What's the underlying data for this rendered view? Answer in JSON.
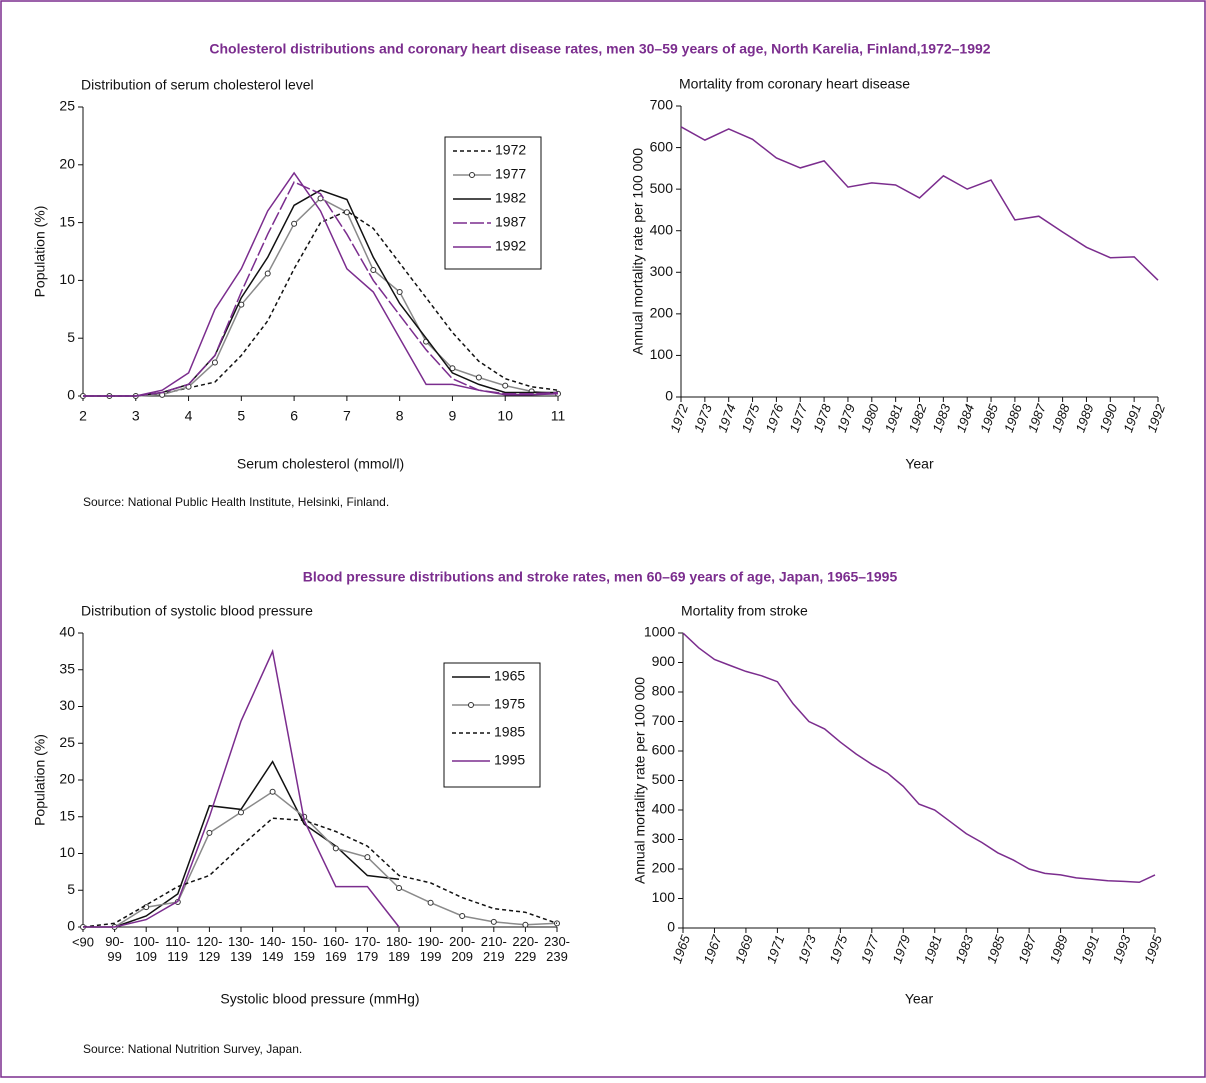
{
  "sections": [
    {
      "title": "Cholesterol distributions and coronary heart disease rates, men 30–59 years of age, North Karelia, Finland,1972–1992",
      "source": "Source: National Public Health Institute, Helsinki, Finland."
    },
    {
      "title": "Blood pressure distributions and stroke rates, men 60–69 years of age, Japan, 1965–1995",
      "source": "Source: National Nutrition Survey, Japan."
    }
  ],
  "chart_data": [
    {
      "type": "line",
      "title": "Distribution of serum cholesterol level",
      "x_label": "Serum cholesterol (mmol/l)",
      "y_label": "Population (%)",
      "x": [
        2,
        2.5,
        3,
        3.5,
        4,
        4.5,
        5,
        5.5,
        6,
        6.5,
        7,
        7.5,
        8,
        8.5,
        9,
        9.5,
        10,
        10.5,
        11
      ],
      "xlim": [
        2,
        11
      ],
      "xticks": [
        2,
        3,
        4,
        5,
        6,
        7,
        8,
        9,
        10,
        11
      ],
      "ylim": [
        0,
        25
      ],
      "yticks": [
        0,
        5,
        10,
        15,
        20,
        25
      ],
      "legend": "upper right",
      "series": [
        {
          "name": "1972",
          "color": "#111111",
          "dash": "4 3",
          "values": [
            0,
            0,
            0,
            0.2,
            0.7,
            1.2,
            3.5,
            6.5,
            11,
            15,
            16,
            14.5,
            11.5,
            8.5,
            5.5,
            3,
            1.5,
            0.8,
            0.5
          ]
        },
        {
          "name": "1977",
          "color": "#8a8a8a",
          "marker": "circle",
          "values": [
            0,
            0,
            0,
            0.1,
            0.8,
            2.9,
            7.9,
            10.6,
            14.9,
            17.1,
            15.9,
            10.9,
            9,
            4.7,
            2.4,
            1.6,
            0.9,
            0.4,
            0.2
          ]
        },
        {
          "name": "1982",
          "color": "#111111",
          "values": [
            0,
            0,
            0,
            0.3,
            1,
            3.5,
            8.5,
            12,
            16.5,
            17.8,
            17,
            12,
            8,
            5,
            2,
            1,
            0.3,
            0.3,
            0.3
          ]
        },
        {
          "name": "1987",
          "color": "#7b2d8e",
          "dash": "14 3",
          "values": [
            0,
            0,
            0,
            0.3,
            1,
            3.5,
            9,
            14,
            18.5,
            17.5,
            14,
            10,
            7,
            4,
            1.5,
            0.5,
            0.2,
            0.2,
            0.3
          ]
        },
        {
          "name": "1992",
          "color": "#7b2d8e",
          "values": [
            0,
            0,
            0,
            0.5,
            2,
            7.5,
            11,
            16,
            19.3,
            16,
            11,
            9,
            5,
            1,
            1,
            0.5,
            0.1,
            0.1,
            0.2
          ]
        }
      ]
    },
    {
      "type": "line",
      "title": "Mortality from coronary heart disease",
      "x_label": "Year",
      "y_label": "Annual mortality rate per 100 000",
      "x": [
        1972,
        1973,
        1974,
        1975,
        1976,
        1977,
        1978,
        1979,
        1980,
        1981,
        1982,
        1983,
        1984,
        1985,
        1986,
        1987,
        1988,
        1989,
        1990,
        1991,
        1992
      ],
      "xlim": [
        1972,
        1992
      ],
      "xticks": [
        1972,
        1973,
        1974,
        1975,
        1976,
        1977,
        1978,
        1979,
        1980,
        1981,
        1982,
        1983,
        1984,
        1985,
        1986,
        1987,
        1988,
        1989,
        1990,
        1991,
        1992
      ],
      "xtick_rotation": -70,
      "ylim": [
        0,
        700
      ],
      "yticks": [
        0,
        100,
        200,
        300,
        400,
        500,
        600,
        700
      ],
      "color": "#7b2d8e",
      "values": [
        650,
        618,
        645,
        620,
        575,
        551,
        568,
        505,
        515,
        510,
        479,
        532,
        500,
        522,
        426,
        435,
        397,
        360,
        335,
        337,
        281
      ]
    },
    {
      "type": "line",
      "title": "Distribution of systolic blood pressure",
      "x_label": "Systolic blood pressure (mmHg)",
      "y_label": "Population (%)",
      "categories": [
        "<90",
        "90-99",
        "100-109",
        "110-119",
        "120-129",
        "130-139",
        "140-149",
        "150-159",
        "160-169",
        "170-179",
        "180-189",
        "190-199",
        "200-209",
        "210-219",
        "220-229",
        "230-239"
      ],
      "ylim": [
        0,
        40
      ],
      "yticks": [
        0,
        5,
        10,
        15,
        20,
        25,
        30,
        35,
        40
      ],
      "legend": "upper right",
      "series": [
        {
          "name": "1965",
          "color": "#111111",
          "values": [
            0,
            0,
            1.5,
            4.5,
            16.5,
            16,
            22.5,
            14,
            11,
            7,
            6.5,
            null,
            null,
            null,
            null,
            null
          ]
        },
        {
          "name": "1975",
          "color": "#8a8a8a",
          "marker": "circle",
          "values": [
            0,
            0,
            2.7,
            3.4,
            12.8,
            15.6,
            18.4,
            15,
            10.7,
            9.5,
            5.3,
            3.3,
            1.5,
            0.7,
            0.3,
            0.5
          ]
        },
        {
          "name": "1985",
          "color": "#111111",
          "dash": "4 3",
          "values": [
            0,
            0.5,
            3,
            5.5,
            7,
            11,
            14.8,
            14.5,
            13,
            11,
            7,
            6,
            4,
            2.5,
            2,
            0.5
          ]
        },
        {
          "name": "1995",
          "color": "#7b2d8e",
          "values": [
            0,
            0,
            1,
            3.5,
            15,
            28,
            37.5,
            14.5,
            5.5,
            5.5,
            0,
            null,
            null,
            null,
            null,
            null
          ]
        }
      ]
    },
    {
      "type": "line",
      "title": "Mortality from stroke",
      "x_label": "Year",
      "y_label": "Annual mortality rate per 100 000",
      "x": [
        1965,
        1966,
        1967,
        1968,
        1969,
        1970,
        1971,
        1972,
        1973,
        1974,
        1975,
        1976,
        1977,
        1978,
        1979,
        1980,
        1981,
        1982,
        1983,
        1984,
        1985,
        1986,
        1987,
        1988,
        1989,
        1990,
        1991,
        1992,
        1993,
        1994,
        1995
      ],
      "xlim": [
        1965,
        1995
      ],
      "xticks": [
        1965,
        1967,
        1969,
        1971,
        1973,
        1975,
        1977,
        1979,
        1981,
        1983,
        1985,
        1987,
        1989,
        1991,
        1993,
        1995
      ],
      "xtick_rotation": -70,
      "ylim": [
        0,
        1000
      ],
      "yticks": [
        0,
        100,
        200,
        300,
        400,
        500,
        600,
        700,
        800,
        900,
        1000
      ],
      "color": "#7b2d8e",
      "values": [
        1000,
        950,
        910,
        890,
        870,
        855,
        835,
        760,
        700,
        675,
        630,
        590,
        555,
        525,
        480,
        420,
        400,
        360,
        320,
        290,
        255,
        230,
        200,
        185,
        180,
        170,
        165,
        160,
        158,
        155,
        180
      ]
    }
  ]
}
